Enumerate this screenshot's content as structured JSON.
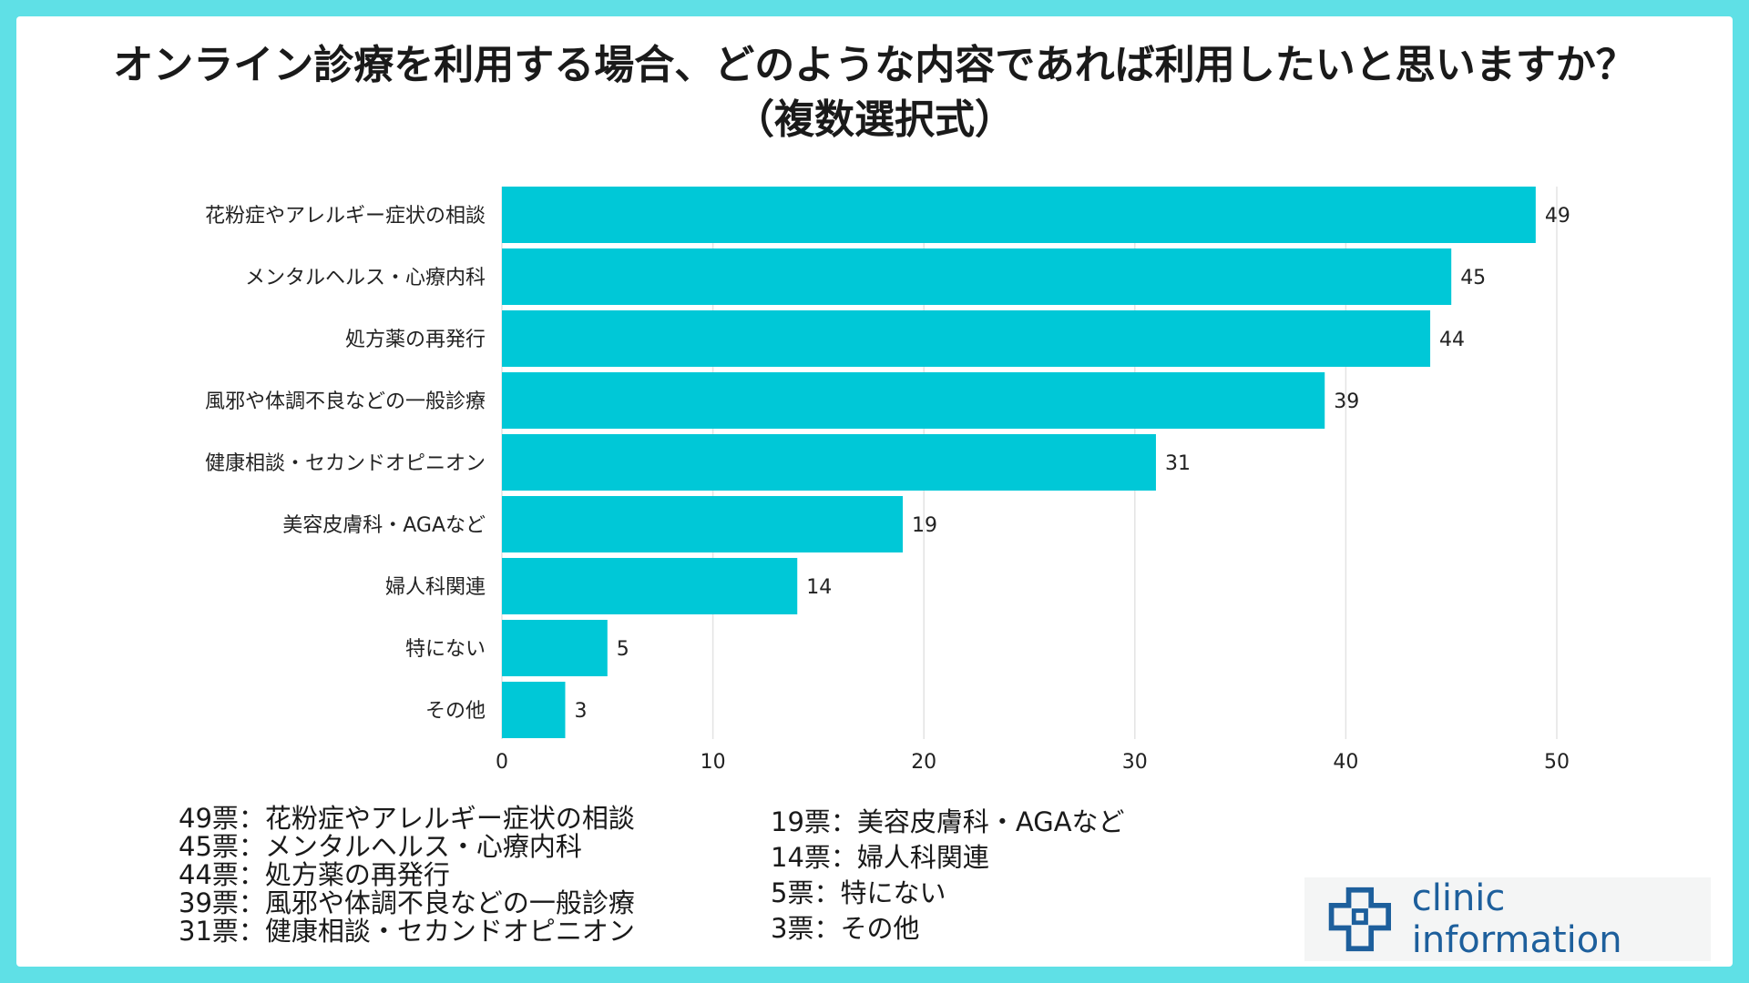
{
  "title": {
    "line1": "オンライン診療を利用する場合、どのような内容であれば利用したいと思いますか？",
    "line2": "（複数選択式）"
  },
  "chart_data": {
    "type": "bar",
    "orientation": "horizontal",
    "categories": [
      "花粉症やアレルギー症状の相談",
      "メンタルヘルス・心療内科",
      "処方薬の再発行",
      "風邪や体調不良などの一般診療",
      "健康相談・セカンドオピニオン",
      "美容皮膚科・AGAなど",
      "婦人科関連",
      "特にない",
      "その他"
    ],
    "values": [
      49,
      45,
      44,
      39,
      31,
      19,
      14,
      5,
      3
    ],
    "xlim": [
      0,
      50
    ],
    "xticks": [
      "0",
      "10",
      "20",
      "30",
      "40",
      "50"
    ],
    "bar_color": "#00c8d7",
    "grid": true
  },
  "legend": {
    "left": [
      "49票：花粉症やアレルギー症状の相談",
      "45票：メンタルヘルス・心療内科",
      "44票：処方薬の再発行",
      "39票：風邪や体調不良などの一般診療",
      "31票：健康相談・セカンドオピニオン"
    ],
    "right": [
      "19票：美容皮膚科・AGAなど",
      "14票：婦人科関連",
      "5票：特にない",
      "3票：その他"
    ]
  },
  "logo": {
    "text": "clinic information",
    "icon": "medical-cross-icon",
    "color": "#1d5f9c"
  }
}
